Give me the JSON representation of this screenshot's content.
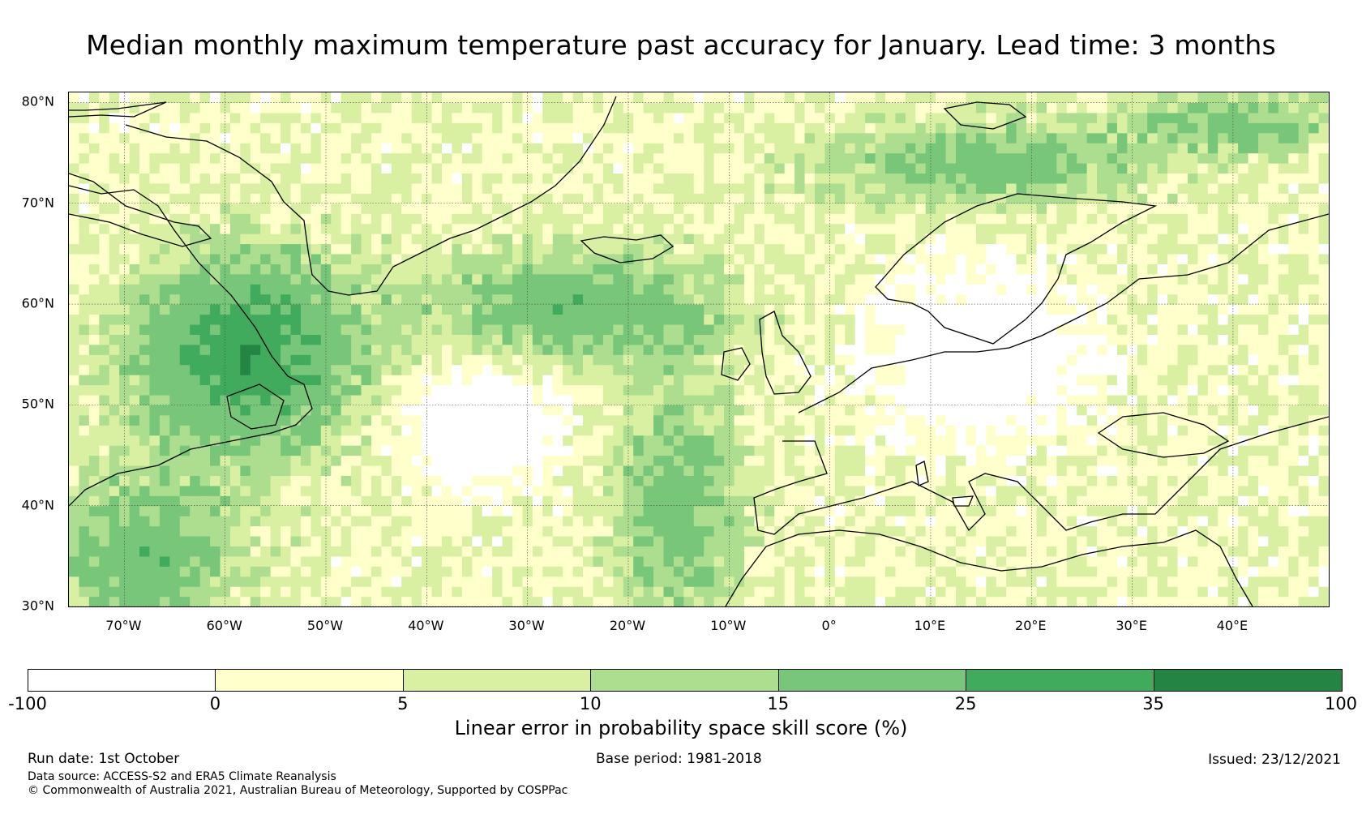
{
  "title": "Median monthly maximum temperature past accuracy for January. Lead time: 3 months",
  "map": {
    "lat_labels": [
      "80°N",
      "70°N",
      "60°N",
      "50°N",
      "40°N",
      "30°N"
    ],
    "lat_values": [
      80,
      70,
      60,
      50,
      40,
      30
    ],
    "lon_labels": [
      "70°W",
      "60°W",
      "50°W",
      "40°W",
      "30°W",
      "20°W",
      "10°W",
      "0°",
      "10°E",
      "20°E",
      "30°E",
      "40°E"
    ],
    "lon_values": [
      -70,
      -60,
      -50,
      -40,
      -30,
      -20,
      -10,
      0,
      10,
      20,
      30,
      40
    ],
    "lon_range": [
      -75.5,
      49.5
    ],
    "lat_range": [
      30,
      81
    ]
  },
  "colorbar": {
    "ticks": [
      "-100",
      "0",
      "5",
      "10",
      "15",
      "25",
      "35",
      "100"
    ],
    "colors": [
      "#ffffff",
      "#ffffcc",
      "#d9f0a3",
      "#addd8e",
      "#78c679",
      "#41ab5d",
      "#238443"
    ],
    "label": "Linear error in probability space skill score (%)"
  },
  "footer": {
    "run_date": "Run date: 1st October",
    "base_period": "Base period: 1981-2018",
    "issued": "Issued: 23/12/2021",
    "data_source": "Data source: ACCESS-S2 and ERA5 Climate Reanalysis",
    "copyright": "© Commonwealth of Australia 2021, Australian Bureau of Meteorology, Supported by COSPPac"
  }
}
